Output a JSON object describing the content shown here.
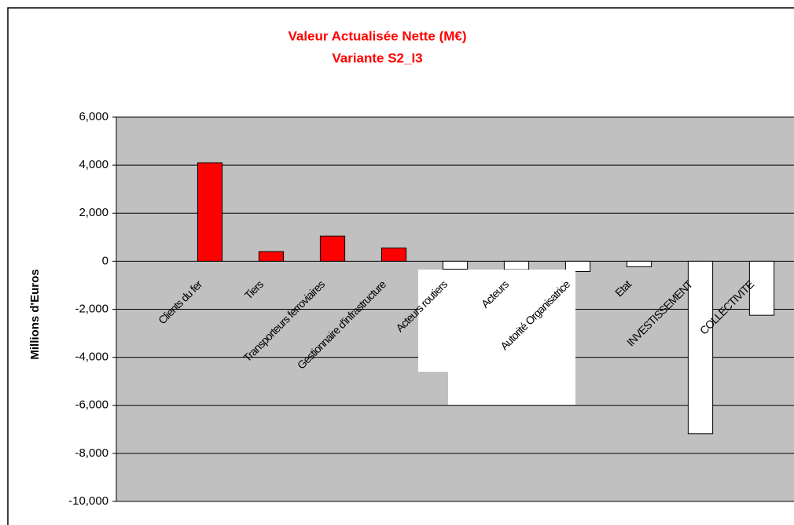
{
  "chart_data": {
    "type": "bar",
    "title": "Valeur Actualisée Nette (M€)",
    "subtitle": "Variante S2_I3",
    "y_label": "Millions d'Euros",
    "categories": [
      "Clients du fer",
      "Tiers",
      "Transporteurs ferroviaires",
      "Gestionnaire d'infrastructure",
      "Acteurs routiers",
      "Acteurs",
      "Autorité Organisatrice",
      "Etat",
      "INVESTISSEMENT",
      "COLLECTIVITE"
    ],
    "values": [
      4100,
      400,
      1050,
      550,
      -330,
      -350,
      -430,
      -230,
      -7180,
      -2250
    ],
    "colors": [
      "#ff0000",
      "#ff0000",
      "#ff0000",
      "#ff0000",
      "#ffffff",
      "#ffffff",
      "#ffffff",
      "#ffffff",
      "#ffffff",
      "#ffffff"
    ],
    "ylim": [
      -10000,
      6000
    ],
    "yticks": [
      {
        "value": -10000,
        "label": "-10,000"
      },
      {
        "value": -8000,
        "label": "-8,000"
      },
      {
        "value": -6000,
        "label": "-6,000"
      },
      {
        "value": -4000,
        "label": "-4,000"
      },
      {
        "value": -2000,
        "label": "-2,000"
      },
      0,
      {
        "value": 2000,
        "label": "2,000"
      },
      {
        "value": 4000,
        "label": "4,000"
      },
      {
        "value": 6000,
        "label": "6,000"
      }
    ],
    "grid": true
  }
}
